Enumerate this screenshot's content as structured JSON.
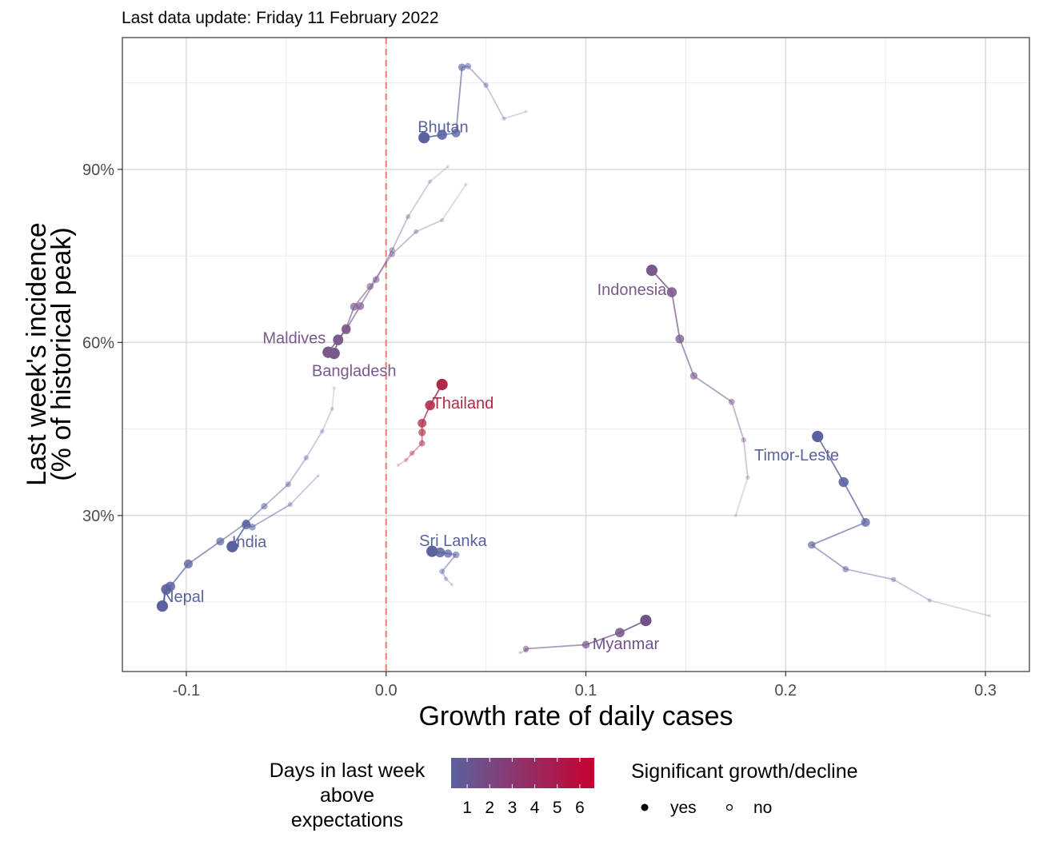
{
  "subtitle": "Last data update: Friday 11 February 2022",
  "chart_data": {
    "type": "scatter",
    "xlabel": "Growth rate of daily cases",
    "ylabel_line1": "Last week's incidence",
    "ylabel_line2": "(% of historical peak)",
    "xlim": [
      -0.132,
      0.322
    ],
    "ylim": [
      0.0295,
      1.1285
    ],
    "x_ticks": [
      {
        "value": -0.1,
        "label": "-0.1"
      },
      {
        "value": 0.0,
        "label": "0.0"
      },
      {
        "value": 0.1,
        "label": "0.1"
      },
      {
        "value": 0.2,
        "label": "0.2"
      },
      {
        "value": 0.3,
        "label": "0.3"
      }
    ],
    "y_ticks": [
      {
        "value": 0.3,
        "label": "30%"
      },
      {
        "value": 0.6,
        "label": "60%"
      },
      {
        "value": 0.9,
        "label": "90%"
      }
    ],
    "vline_x": 0.0,
    "grid": true,
    "color_scale": {
      "low": "#5a62a0",
      "high": "#c8002f",
      "min_days": 1,
      "max_days": 6
    },
    "series": [
      {
        "name": "Bhutan",
        "days_above": 1,
        "color": "#5a62a0",
        "label_pos": [
          0.0285,
          0.974
        ],
        "points": [
          [
            0.07,
            1.0
          ],
          [
            0.059,
            0.988
          ],
          [
            0.05,
            1.046
          ],
          [
            0.041,
            1.079
          ],
          [
            0.038,
            1.077
          ],
          [
            0.035,
            0.963
          ],
          [
            0.028,
            0.96
          ],
          [
            0.019,
            0.955
          ]
        ]
      },
      {
        "name": "Maldives",
        "days_above": 3,
        "color": "#7a5a8c",
        "label_pos": [
          -0.046,
          0.608
        ],
        "points": [
          [
            0.031,
            0.905
          ],
          [
            0.022,
            0.879
          ],
          [
            0.011,
            0.818
          ],
          [
            0.003,
            0.76
          ],
          [
            -0.005,
            0.709
          ],
          [
            -0.013,
            0.663
          ],
          [
            -0.02,
            0.622
          ],
          [
            -0.024,
            0.605
          ],
          [
            -0.029,
            0.583
          ]
        ]
      },
      {
        "name": "Bangladesh",
        "days_above": 3,
        "color": "#7a5a8c",
        "label_pos": [
          -0.016,
          0.551
        ],
        "points": [
          [
            0.04,
            0.874
          ],
          [
            0.028,
            0.812
          ],
          [
            0.015,
            0.792
          ],
          [
            0.003,
            0.753
          ],
          [
            -0.008,
            0.697
          ],
          [
            -0.016,
            0.662
          ],
          [
            -0.02,
            0.624
          ],
          [
            -0.024,
            0.604
          ],
          [
            -0.026,
            0.581
          ]
        ]
      },
      {
        "name": "Thailand",
        "days_above": 6,
        "color": "#b02a47",
        "label_pos": [
          0.0385,
          0.495
        ],
        "points": [
          [
            0.006,
            0.387
          ],
          [
            0.01,
            0.396
          ],
          [
            0.013,
            0.408
          ],
          [
            0.018,
            0.425
          ],
          [
            0.018,
            0.444
          ],
          [
            0.018,
            0.46
          ],
          [
            0.022,
            0.491
          ],
          [
            0.028,
            0.527
          ]
        ]
      },
      {
        "name": "Indonesia",
        "days_above": 3,
        "color": "#7a5a8c",
        "label_pos": [
          0.123,
          0.692
        ],
        "points": [
          [
            0.175,
            0.3
          ],
          [
            0.181,
            0.366
          ],
          [
            0.179,
            0.431
          ],
          [
            0.173,
            0.497
          ],
          [
            0.154,
            0.542
          ],
          [
            0.147,
            0.606
          ],
          [
            0.143,
            0.687
          ],
          [
            0.133,
            0.725
          ]
        ]
      },
      {
        "name": "Timor-Leste",
        "days_above": 1,
        "color": "#5a62a0",
        "label_pos": [
          0.2055,
          0.405
        ],
        "points": [
          [
            0.302,
            0.126
          ],
          [
            0.272,
            0.153
          ],
          [
            0.254,
            0.189
          ],
          [
            0.23,
            0.207
          ],
          [
            0.213,
            0.249
          ],
          [
            0.24,
            0.288
          ],
          [
            0.229,
            0.358
          ],
          [
            0.216,
            0.437
          ]
        ]
      },
      {
        "name": "Sri Lanka",
        "days_above": 1,
        "color": "#5a62a0",
        "label_pos": [
          0.0335,
          0.257
        ],
        "points": [
          [
            0.033,
            0.18
          ],
          [
            0.03,
            0.19
          ],
          [
            0.028,
            0.203
          ],
          [
            0.035,
            0.232
          ],
          [
            0.031,
            0.234
          ],
          [
            0.027,
            0.236
          ],
          [
            0.023,
            0.238
          ]
        ]
      },
      {
        "name": "Myanmar",
        "days_above": 2,
        "color": "#72508a",
        "label_pos": [
          0.12,
          0.078
        ],
        "points": [
          [
            0.067,
            0.062
          ],
          [
            0.07,
            0.066
          ],
          [
            0.07,
            0.069
          ],
          [
            0.1,
            0.076
          ],
          [
            0.117,
            0.097
          ],
          [
            0.13,
            0.118
          ]
        ]
      },
      {
        "name": "India",
        "days_above": 1,
        "color": "#5a62a0",
        "label_pos": [
          -0.0685,
          0.255
        ],
        "points": [
          [
            -0.034,
            0.369
          ],
          [
            -0.048,
            0.319
          ],
          [
            -0.067,
            0.28
          ],
          [
            -0.07,
            0.284
          ],
          [
            -0.077,
            0.246
          ]
        ]
      },
      {
        "name": "Nepal",
        "days_above": 1,
        "color": "#5a62a0",
        "label_pos": [
          -0.1015,
          0.16
        ],
        "points": [
          [
            -0.026,
            0.521
          ],
          [
            -0.027,
            0.485
          ],
          [
            -0.032,
            0.446
          ],
          [
            -0.04,
            0.4
          ],
          [
            -0.049,
            0.354
          ],
          [
            -0.061,
            0.316
          ],
          [
            -0.07,
            0.287
          ],
          [
            -0.083,
            0.255
          ],
          [
            -0.099,
            0.216
          ],
          [
            -0.108,
            0.177
          ],
          [
            -0.11,
            0.172
          ],
          [
            -0.112,
            0.143
          ]
        ]
      }
    ]
  },
  "legend": {
    "color_title": [
      "Days in last week",
      "above",
      "expectations"
    ],
    "color_labels": [
      "1",
      "2",
      "3",
      "4",
      "5",
      "6"
    ],
    "size_title": "Significant growth/decline",
    "size_labels": [
      "yes",
      "no"
    ]
  }
}
